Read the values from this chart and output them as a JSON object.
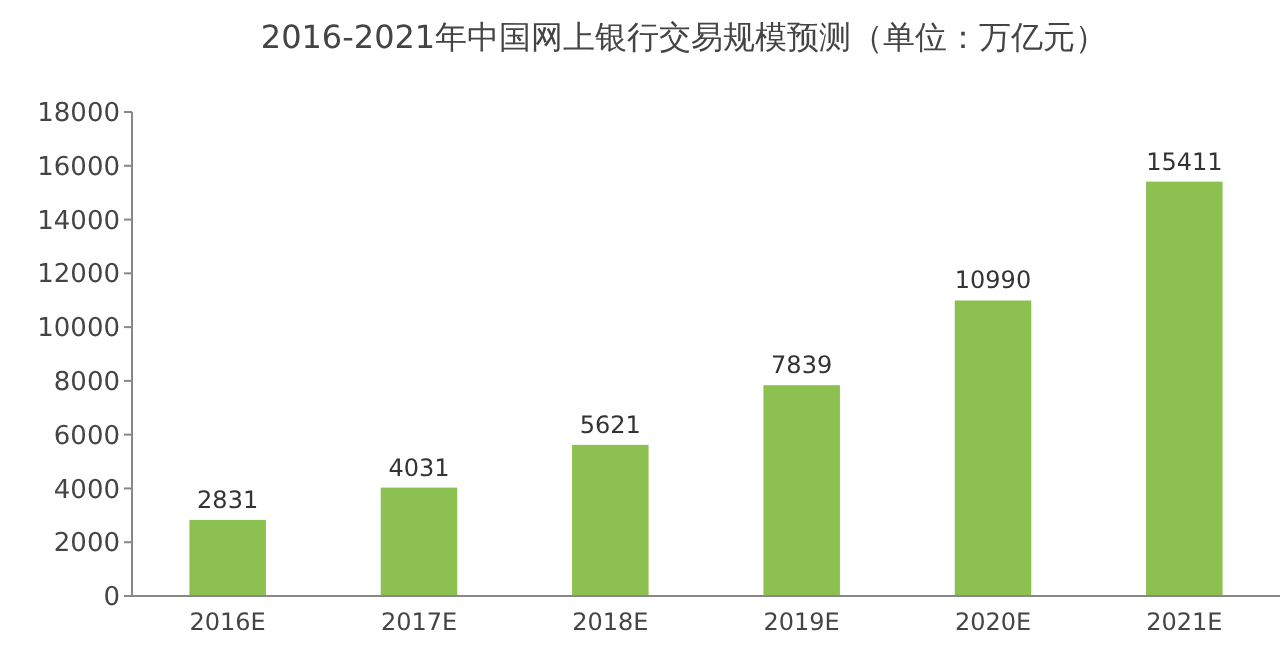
{
  "chart_data": {
    "type": "bar",
    "title": "2016-2021年中国网上银行交易规模预测（单位：万亿元）",
    "categories": [
      "2016E",
      "2017E",
      "2018E",
      "2019E",
      "2020E",
      "2021E"
    ],
    "values": [
      2831,
      4031,
      5621,
      7839,
      10990,
      15411
    ],
    "color": "#8cc152",
    "ylim": [
      0,
      18000
    ],
    "yticks": [
      0,
      2000,
      4000,
      6000,
      8000,
      10000,
      12000,
      14000,
      16000,
      18000
    ],
    "data_labels": true
  }
}
